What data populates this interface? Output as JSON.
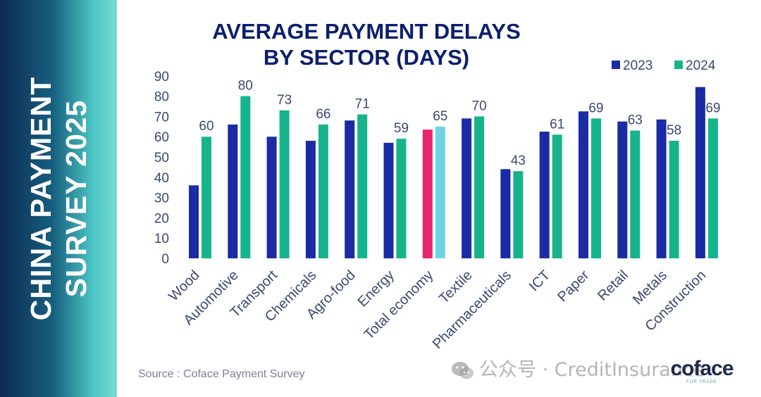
{
  "banner": {
    "line1": "CHINA PAYMENT",
    "line2": "SURVEY 2025"
  },
  "colors": {
    "series_2023": "#1b2aa5",
    "series_2024": "#16b48c",
    "highlight_2023": "#e8246e",
    "highlight_2024": "#6fd3e5",
    "title": "#0b1f6e",
    "text": "#3b4870"
  },
  "chart_data": {
    "type": "bar",
    "title_line1": "AVERAGE PAYMENT DELAYS",
    "title_line2": "BY SECTOR (DAYS)",
    "categories": [
      "Wood",
      "Automotive",
      "Transport",
      "Chemicals",
      "Agro-food",
      "Energy",
      "Total economy",
      "Textile",
      "Pharmaceuticals",
      "ICT",
      "Paper",
      "Retail",
      "Metals",
      "Construction"
    ],
    "series": [
      {
        "name": "2023",
        "values": [
          36,
          66,
          60,
          58,
          68,
          57,
          63.5,
          69,
          44,
          62.5,
          72.5,
          67.5,
          68.5,
          84.5
        ]
      },
      {
        "name": "2024",
        "values": [
          60,
          80,
          73,
          66,
          71,
          59,
          65,
          70,
          43,
          61,
          69,
          63,
          58,
          69
        ]
      }
    ],
    "data_labels_2024": [
      "60",
      "80",
      "73",
      "66",
      "71",
      "59",
      "65",
      "70",
      "43",
      "61",
      "69",
      "63",
      "58",
      "69"
    ],
    "highlight_category": "Total economy",
    "ylim": [
      0,
      90
    ],
    "yticks": [
      "0",
      "10",
      "20",
      "30",
      "40",
      "50",
      "60",
      "70",
      "80",
      "90"
    ],
    "legend_position": "top-right",
    "grid": false
  },
  "footer": {
    "source": "Source : Coface Payment Survey",
    "watermark": "公众号 · CreditInsurance",
    "logo": "coface",
    "logo_tagline": "FOR TRADE"
  }
}
